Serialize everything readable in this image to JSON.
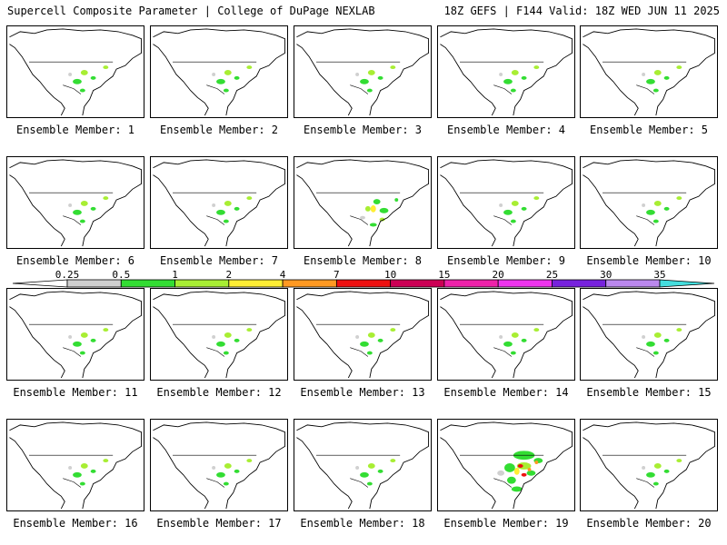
{
  "header": {
    "left": "Supercell Composite Parameter | College of DuPage NEXLAB",
    "right": "18Z GEFS | F144 Valid: 18Z WED JUN 11 2025"
  },
  "colorbar": {
    "labels": [
      "0.25",
      "0.5",
      "1",
      "2",
      "4",
      "7",
      "10",
      "15",
      "20",
      "25",
      "30",
      "35"
    ],
    "colors": [
      "#d0d0d0",
      "#33dd33",
      "#a8ee33",
      "#ffee33",
      "#ff9922",
      "#ee1111",
      "#cc0055",
      "#ee22aa",
      "#ee33ee",
      "#7722dd",
      "#bb88ee",
      "#44dddd"
    ]
  },
  "members": [
    {
      "label": "Ensemble Member: 1",
      "intensity": 1
    },
    {
      "label": "Ensemble Member: 2",
      "intensity": 1
    },
    {
      "label": "Ensemble Member: 3",
      "intensity": 1
    },
    {
      "label": "Ensemble Member: 4",
      "intensity": 1
    },
    {
      "label": "Ensemble Member: 5",
      "intensity": 1
    },
    {
      "label": "Ensemble Member: 6",
      "intensity": 1
    },
    {
      "label": "Ensemble Member: 7",
      "intensity": 1
    },
    {
      "label": "Ensemble Member: 8",
      "intensity": 2
    },
    {
      "label": "Ensemble Member: 9",
      "intensity": 1
    },
    {
      "label": "Ensemble Member: 10",
      "intensity": 1
    },
    {
      "label": "Ensemble Member: 11",
      "intensity": 1
    },
    {
      "label": "Ensemble Member: 12",
      "intensity": 1
    },
    {
      "label": "Ensemble Member: 13",
      "intensity": 1
    },
    {
      "label": "Ensemble Member: 14",
      "intensity": 1
    },
    {
      "label": "Ensemble Member: 15",
      "intensity": 1
    },
    {
      "label": "Ensemble Member: 16",
      "intensity": 1
    },
    {
      "label": "Ensemble Member: 17",
      "intensity": 1
    },
    {
      "label": "Ensemble Member: 18",
      "intensity": 1
    },
    {
      "label": "Ensemble Member: 19",
      "intensity": 3
    },
    {
      "label": "Ensemble Member: 20",
      "intensity": 1
    }
  ]
}
